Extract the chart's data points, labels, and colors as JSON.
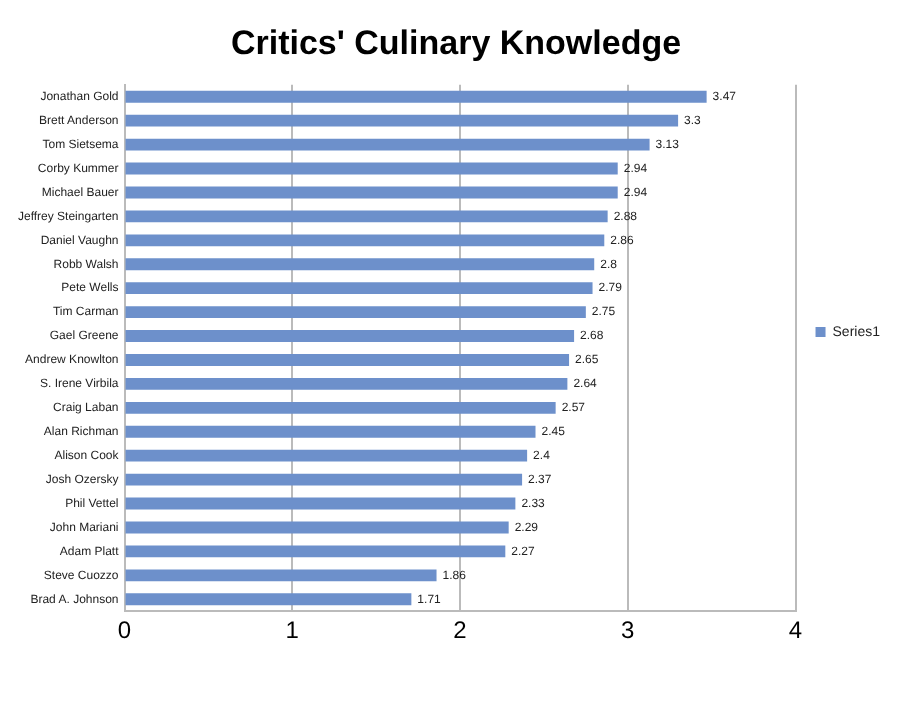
{
  "chart_data": {
    "type": "bar",
    "orientation": "horizontal",
    "title": "Critics' Culinary Knowledge",
    "categories": [
      "Jonathan Gold",
      "Brett Anderson",
      "Tom Sietsema",
      "Corby Kummer",
      "Michael Bauer",
      "Jeffrey Steingarten",
      "Daniel Vaughn",
      "Robb Walsh",
      "Pete Wells",
      "Tim Carman",
      "Gael Greene",
      "Andrew Knowlton",
      "S. Irene Virbila",
      "Craig Laban",
      "Alan Richman",
      "Alison Cook",
      "Josh Ozersky",
      "Phil Vettel",
      "John Mariani",
      "Adam Platt",
      "Steve Cuozzo",
      "Brad A. Johnson"
    ],
    "series": [
      {
        "name": "Series1",
        "color": "#6d90cb",
        "values": [
          3.47,
          3.3,
          3.13,
          2.94,
          2.94,
          2.88,
          2.86,
          2.8,
          2.79,
          2.75,
          2.68,
          2.65,
          2.64,
          2.57,
          2.45,
          2.4,
          2.37,
          2.33,
          2.29,
          2.27,
          1.86,
          1.71
        ]
      }
    ],
    "xlim": [
      0,
      4
    ],
    "xticks": [
      0,
      1,
      2,
      3,
      4
    ],
    "grid": "x",
    "legend": "right",
    "data_labels": true
  }
}
